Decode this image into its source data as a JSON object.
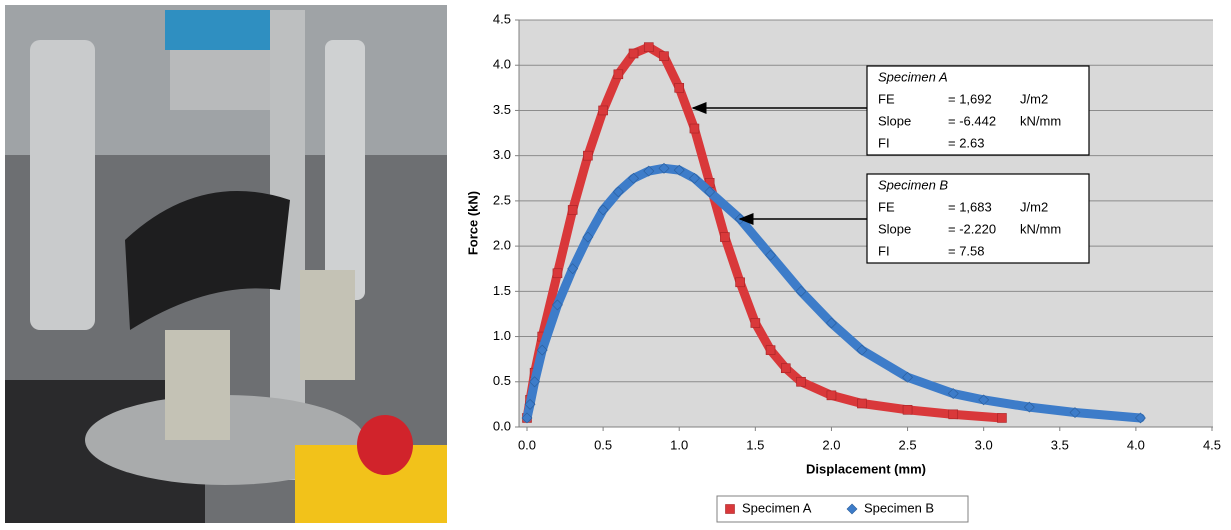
{
  "chart_data": {
    "type": "scatter",
    "xlabel": "Displacement (mm)",
    "ylabel": "Force (kN)",
    "xlim": [
      0,
      4.5
    ],
    "ylim": [
      0,
      4.5
    ],
    "xticks": [
      {
        "value": 0,
        "label": "0.0"
      },
      {
        "value": 0.5,
        "label": "0.5"
      },
      {
        "value": 1,
        "label": "1.0"
      },
      {
        "value": 1.5,
        "label": "1.5"
      },
      {
        "value": 2,
        "label": "2.0"
      },
      {
        "value": 2.5,
        "label": "2.5"
      },
      {
        "value": 3,
        "label": "3.0"
      },
      {
        "value": 3.5,
        "label": "3.5"
      },
      {
        "value": 4,
        "label": "4.0"
      },
      {
        "value": 4.5,
        "label": "4.5"
      }
    ],
    "yticks": [
      {
        "value": 0,
        "label": "0.0"
      },
      {
        "value": 0.5,
        "label": "0.5"
      },
      {
        "value": 1,
        "label": "1.0"
      },
      {
        "value": 1.5,
        "label": "1.5"
      },
      {
        "value": 2,
        "label": "2.0"
      },
      {
        "value": 2.5,
        "label": "2.5"
      },
      {
        "value": 3,
        "label": "3.0"
      },
      {
        "value": 3.5,
        "label": "3.5"
      },
      {
        "value": 4,
        "label": "4.0"
      },
      {
        "value": 4.5,
        "label": "4.5"
      }
    ],
    "grid": true,
    "series": [
      {
        "name": "Specimen A",
        "color": "#d9383a",
        "marker": "square",
        "x": [
          0,
          0.02,
          0.05,
          0.1,
          0.2,
          0.3,
          0.4,
          0.5,
          0.6,
          0.7,
          0.8,
          0.9,
          1.0,
          1.1,
          1.2,
          1.3,
          1.4,
          1.5,
          1.6,
          1.7,
          1.8,
          2.0,
          2.2,
          2.5,
          2.8,
          3.12
        ],
        "values": [
          0.1,
          0.3,
          0.6,
          1.0,
          1.7,
          2.4,
          3.0,
          3.5,
          3.9,
          4.13,
          4.2,
          4.1,
          3.75,
          3.3,
          2.7,
          2.1,
          1.6,
          1.15,
          0.85,
          0.65,
          0.5,
          0.35,
          0.26,
          0.19,
          0.14,
          0.1
        ]
      },
      {
        "name": "Specimen B",
        "color": "#3d7cc9",
        "marker": "diamond",
        "x": [
          0,
          0.02,
          0.05,
          0.1,
          0.2,
          0.3,
          0.4,
          0.5,
          0.6,
          0.7,
          0.8,
          0.9,
          1.0,
          1.1,
          1.2,
          1.4,
          1.6,
          1.8,
          2.0,
          2.2,
          2.5,
          2.8,
          3.0,
          3.3,
          3.6,
          4.03
        ],
        "values": [
          0.1,
          0.25,
          0.5,
          0.85,
          1.35,
          1.75,
          2.1,
          2.4,
          2.6,
          2.75,
          2.83,
          2.86,
          2.84,
          2.75,
          2.6,
          2.3,
          1.9,
          1.5,
          1.15,
          0.85,
          0.55,
          0.37,
          0.3,
          0.22,
          0.16,
          0.1
        ]
      }
    ],
    "annotations": [
      {
        "title": "Specimen A",
        "rows": [
          [
            "FE",
            "= 1,692",
            "J/m2"
          ],
          [
            "Slope",
            "= -6.442",
            "kN/mm"
          ],
          [
            "FI",
            "= 2.63"
          ]
        ]
      },
      {
        "title": "Specimen B",
        "rows": [
          [
            "FE",
            "= 1,683",
            "J/m2"
          ],
          [
            "Slope",
            "= -2.220",
            "kN/mm"
          ],
          [
            "FI",
            "= 7.58"
          ]
        ]
      }
    ]
  }
}
